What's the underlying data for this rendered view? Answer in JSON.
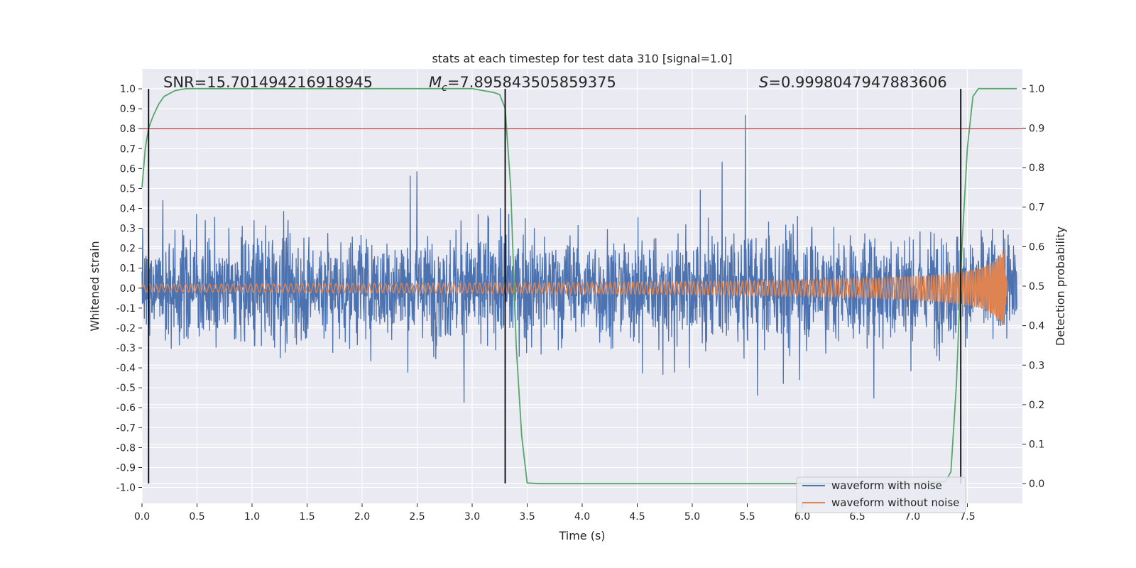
{
  "chart_data": {
    "type": "line",
    "title": "stats at each timestep for test data 310 [signal=1.0]",
    "xlabel": "Time (s)",
    "ylabel": "Whitened strain",
    "ylabel_right": "Detection probability",
    "xlim": [
      0.0,
      8.0
    ],
    "ylim": [
      -1.08,
      1.1
    ],
    "ylim_right": [
      -0.05,
      1.05
    ],
    "x_ticks": [
      "0.0",
      "0.5",
      "1.0",
      "1.5",
      "2.0",
      "2.5",
      "3.0",
      "3.5",
      "4.0",
      "4.5",
      "5.0",
      "5.5",
      "6.0",
      "6.5",
      "7.0",
      "7.5"
    ],
    "y_ticks": [
      "1.0",
      "0.9",
      "0.8",
      "0.7",
      "0.6",
      "0.5",
      "0.4",
      "0.3",
      "0.2",
      "0.1",
      "0.0",
      "-0.1",
      "-0.2",
      "-0.3",
      "-0.4",
      "-0.5",
      "-0.6",
      "-0.7",
      "-0.8",
      "-0.9",
      "-1.0"
    ],
    "y_ticks_right": [
      "1.0",
      "0.9",
      "0.8",
      "0.7",
      "0.6",
      "0.5",
      "0.4",
      "0.3",
      "0.2",
      "0.1",
      "0.0"
    ],
    "grid": true,
    "legend_position": "lower-right",
    "annotations": {
      "snr": "SNR=15.701494216918945",
      "mc_prefix": "M",
      "mc_sub": "c",
      "mc_value": "=7.895843505859375",
      "s_prefix": "S",
      "s_value": "=0.9998047947883606"
    },
    "series": [
      {
        "name": "waveform with noise",
        "color": "#4c72b0",
        "axis": "left",
        "description": "noisy strain, envelope approx ±0.45 with spikes up to ±0.9",
        "envelope": 0.45,
        "x_range": [
          0.0,
          7.95
        ]
      },
      {
        "name": "waveform without noise",
        "color": "#dd8452",
        "axis": "left",
        "chirp": {
          "x_start": 0.0,
          "x_end": 7.86,
          "amplitude_start": 0.02,
          "amplitude_peak": 0.4,
          "peak_time": 7.83
        }
      },
      {
        "name": "",
        "color": "#55a868",
        "axis": "right",
        "x": [
          0.0,
          0.03,
          0.06,
          0.1,
          0.15,
          0.2,
          0.3,
          0.4,
          0.6,
          1.0,
          2.0,
          3.0,
          3.2,
          3.25,
          3.3,
          3.35,
          3.4,
          3.45,
          3.5,
          3.6,
          4.0,
          5.0,
          6.0,
          7.0,
          7.3,
          7.35,
          7.4,
          7.45,
          7.5,
          7.55,
          7.6,
          7.8,
          7.95
        ],
        "values": [
          0.75,
          0.85,
          0.9,
          0.93,
          0.96,
          0.98,
          0.995,
          1.0,
          1.0,
          1.0,
          1.0,
          1.0,
          0.99,
          0.985,
          0.95,
          0.75,
          0.35,
          0.12,
          0.002,
          0.0,
          0.0,
          0.0,
          0.0,
          0.0,
          0.005,
          0.03,
          0.25,
          0.6,
          0.85,
          0.98,
          1.0,
          1.0,
          1.0
        ]
      }
    ],
    "hlines": [
      {
        "y": 0.8,
        "color": "#c44e52"
      }
    ],
    "vlines": [
      {
        "x": 0.06,
        "color": "#000000"
      },
      {
        "x": 3.3,
        "color": "#000000"
      },
      {
        "x": 7.44,
        "color": "#000000"
      }
    ]
  }
}
